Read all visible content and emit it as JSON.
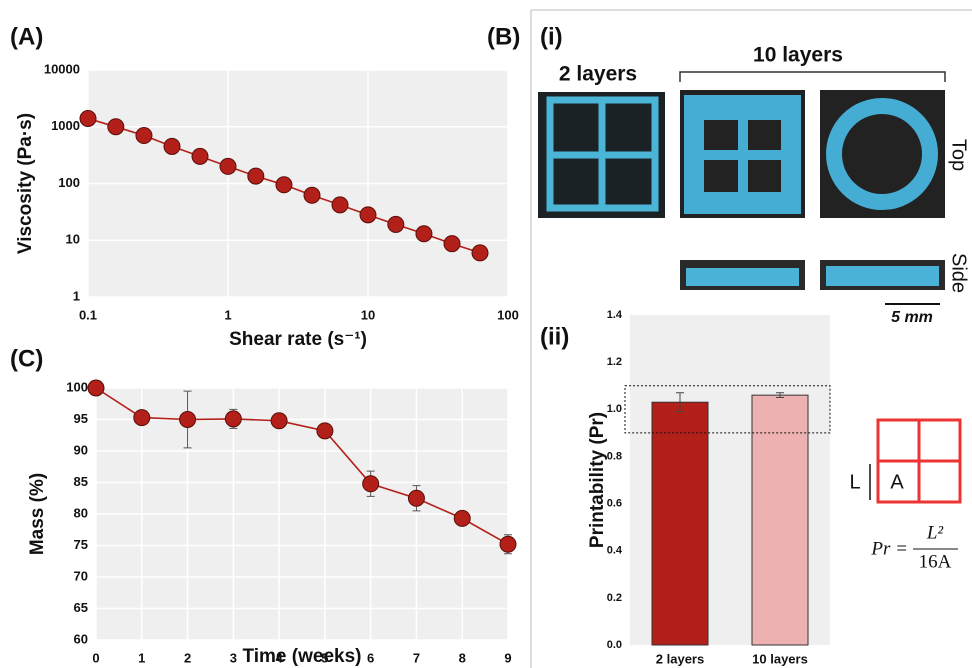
{
  "figure": {
    "panel_a": "(A)",
    "panel_b": "(B)",
    "panel_b_i": "(i)",
    "panel_b_ii": "(ii)",
    "panel_c": "(C)",
    "photo_2_layers": "2 layers",
    "photo_10_layers": "10 layers",
    "view_top": "Top",
    "view_side": "Side",
    "scale_bar": "5 mm",
    "diagram_side": "L",
    "diagram_area": "A",
    "formula_lhs": "Pr =",
    "formula_numerator": "L²",
    "formula_denominator": "16A"
  },
  "chart_data": [
    {
      "type": "line",
      "x_label": "Shear rate (s⁻¹)",
      "y_label": "Viscosity (Pa·s)",
      "x_scale": "log",
      "y_scale": "log",
      "grid": true,
      "x": [
        0.1,
        0.158,
        0.251,
        0.398,
        0.631,
        1,
        1.58,
        2.51,
        3.98,
        6.31,
        10,
        15.8,
        25.1,
        39.8,
        63.1
      ],
      "series": [
        {
          "color": "#b3201a",
          "values": [
            1400,
            1000,
            700,
            450,
            300,
            200,
            135,
            95,
            62,
            42,
            28,
            19,
            13,
            8.7,
            6
          ]
        }
      ],
      "xlim": [
        0.1,
        100
      ],
      "xticks": [
        0.1,
        1,
        10,
        100
      ],
      "ylim": [
        1,
        10000
      ],
      "yticks": [
        1,
        10,
        100,
        1000,
        10000
      ]
    },
    {
      "type": "line",
      "x_label": "Time (weeks)",
      "y_label": "Mass  (%)",
      "grid": true,
      "x": [
        0,
        1,
        2,
        3,
        4,
        5,
        6,
        7,
        8,
        9
      ],
      "series": [
        {
          "color": "#b3201a",
          "values": [
            100,
            95.3,
            95,
            95.1,
            94.8,
            93.2,
            84.8,
            82.5,
            79.3,
            75.2
          ],
          "errors": [
            null,
            1,
            4.5,
            1.5,
            0.5,
            0.5,
            2,
            2,
            1,
            1.5
          ]
        }
      ],
      "xlim": [
        0,
        9
      ],
      "xticks": [
        0,
        1,
        2,
        3,
        4,
        5,
        6,
        7,
        8,
        9
      ],
      "ylim": [
        60,
        100
      ],
      "yticks": [
        60,
        65,
        70,
        75,
        80,
        85,
        90,
        95,
        100
      ]
    },
    {
      "type": "bar",
      "y_label": "Printability (Pr)",
      "categories": [
        "2 layers",
        "10 layers"
      ],
      "values": [
        1.03,
        1.06
      ],
      "errors": [
        0.04,
        0.01
      ],
      "colors": [
        "#b3201a",
        "#eeb1b1"
      ],
      "reference_band": [
        0.9,
        1.1
      ],
      "ylim": [
        0,
        1.4
      ],
      "yticks": [
        {
          "value": 0,
          "label": "0.0"
        },
        {
          "value": 0.2,
          "label": "0.2"
        },
        {
          "value": 0.4,
          "label": "0.4"
        },
        {
          "value": 0.6,
          "label": "0.6"
        },
        {
          "value": 0.8,
          "label": "0.8"
        },
        {
          "value": 1,
          "label": "1.0"
        },
        {
          "value": 1.2,
          "label": "1.2"
        },
        {
          "value": 1.4,
          "label": "1.4"
        }
      ]
    }
  ]
}
